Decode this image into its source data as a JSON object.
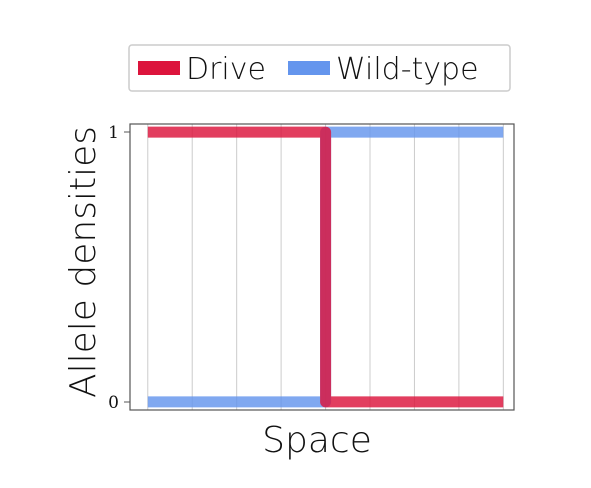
{
  "chart_data": {
    "type": "line",
    "xlabel": "Space",
    "ylabel": "Allele densities",
    "x": [
      0,
      0.5,
      0.5,
      1
    ],
    "xlim": [
      -0.05,
      1.03
    ],
    "ylim": [
      -0.03,
      1.03
    ],
    "yticks": [
      "0",
      "1"
    ],
    "grid": "vertical",
    "legend_position": "top",
    "series": [
      {
        "name": "Drive",
        "color": "#dc143c",
        "values": [
          1,
          1,
          0,
          0
        ]
      },
      {
        "name": "Wild-type",
        "color": "#6495ed",
        "values": [
          0,
          0,
          1,
          1
        ]
      }
    ]
  }
}
